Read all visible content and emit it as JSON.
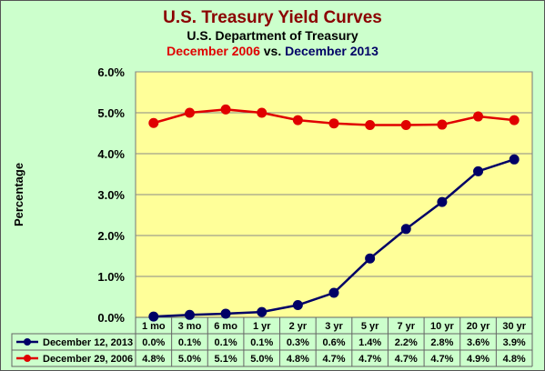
{
  "title": {
    "main": "U.S. Treasury Yield Curves",
    "source": "U.S. Department of Treasury",
    "compare_a": "December 2006",
    "compare_vs": " vs. ",
    "compare_b": "December 2013"
  },
  "chart_data": {
    "type": "line",
    "ylabel": "Percentage",
    "ylim": [
      0,
      6
    ],
    "yticks": [
      "0.0%",
      "1.0%",
      "2.0%",
      "3.0%",
      "4.0%",
      "5.0%",
      "6.0%"
    ],
    "categories": [
      "1 mo",
      "3 mo",
      "6 mo",
      "1 yr",
      "2 yr",
      "3 yr",
      "5 yr",
      "7 yr",
      "10 yr",
      "20 yr",
      "30 yr"
    ],
    "grid": true,
    "legend": "data-table",
    "series": [
      {
        "name": "December 12, 2013",
        "color": "#000066",
        "values": [
          0.02,
          0.06,
          0.09,
          0.13,
          0.3,
          0.6,
          1.44,
          2.16,
          2.82,
          3.57,
          3.86
        ],
        "labels": [
          "0.0%",
          "0.1%",
          "0.1%",
          "0.1%",
          "0.3%",
          "0.6%",
          "1.4%",
          "2.2%",
          "2.8%",
          "3.6%",
          "3.9%"
        ]
      },
      {
        "name": "December 29, 2006",
        "color": "#e00000",
        "values": [
          4.75,
          5.0,
          5.08,
          5.0,
          4.82,
          4.74,
          4.7,
          4.7,
          4.71,
          4.91,
          4.82
        ],
        "labels": [
          "4.8%",
          "5.0%",
          "5.1%",
          "5.0%",
          "4.8%",
          "4.7%",
          "4.7%",
          "4.7%",
          "4.7%",
          "4.9%",
          "4.8%"
        ]
      }
    ]
  }
}
